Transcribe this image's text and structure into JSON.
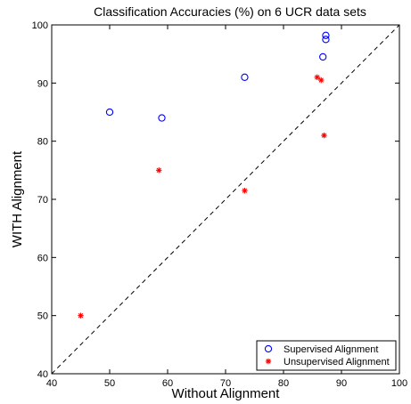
{
  "chart_data": {
    "type": "scatter",
    "title": "Classification Accuracies (%) on 6 UCR data sets",
    "xlabel": "Without Alignment",
    "ylabel": "WITH Alignment",
    "xlim": [
      40,
      100
    ],
    "ylim": [
      40,
      100
    ],
    "xticks": [
      40,
      50,
      60,
      70,
      80,
      90,
      100
    ],
    "yticks": [
      40,
      50,
      60,
      70,
      80,
      90,
      100
    ],
    "grid": false,
    "legend_position": "bottom-right",
    "reference_line": "y = x (dashed)",
    "series": [
      {
        "name": "Supervised Alignment",
        "marker": "circle",
        "color": "#0000ff",
        "points": [
          {
            "x": 50.0,
            "y": 85.0
          },
          {
            "x": 59.0,
            "y": 84.0
          },
          {
            "x": 73.3,
            "y": 91.0
          },
          {
            "x": 86.8,
            "y": 94.5
          },
          {
            "x": 87.3,
            "y": 97.5
          },
          {
            "x": 87.3,
            "y": 98.2
          }
        ]
      },
      {
        "name": "Unsupervised Alignment",
        "marker": "star",
        "color": "#ff0000",
        "points": [
          {
            "x": 45.0,
            "y": 50.0
          },
          {
            "x": 58.5,
            "y": 75.0
          },
          {
            "x": 73.3,
            "y": 71.5
          },
          {
            "x": 85.8,
            "y": 91.0
          },
          {
            "x": 86.5,
            "y": 90.5
          },
          {
            "x": 87.0,
            "y": 81.0
          }
        ]
      }
    ]
  }
}
